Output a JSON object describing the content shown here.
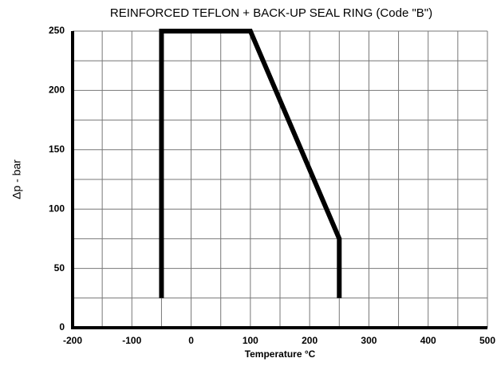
{
  "chart_data": {
    "type": "line",
    "title": "REINFORCED TEFLON + BACK-UP SEAL RING (Code \"B\")",
    "x_label": "Temperature °C",
    "y_label": "Δp - bar",
    "x": [
      -50,
      -50,
      100,
      250,
      250
    ],
    "series": [
      {
        "name": null,
        "color": "#000000",
        "values": [
          25,
          250,
          250,
          75,
          25
        ]
      }
    ],
    "xlim": [
      -200,
      500
    ],
    "xticks": [
      -200,
      -100,
      0,
      100,
      200,
      300,
      400,
      500
    ],
    "x_minor_grid": [
      -150,
      -50,
      50,
      150,
      250,
      350,
      450
    ],
    "ylim": [
      0,
      250
    ],
    "yticks": [
      0,
      50,
      100,
      150,
      200,
      250
    ],
    "y_minor_grid": [
      25,
      75,
      125,
      175,
      225
    ],
    "grid": true
  }
}
